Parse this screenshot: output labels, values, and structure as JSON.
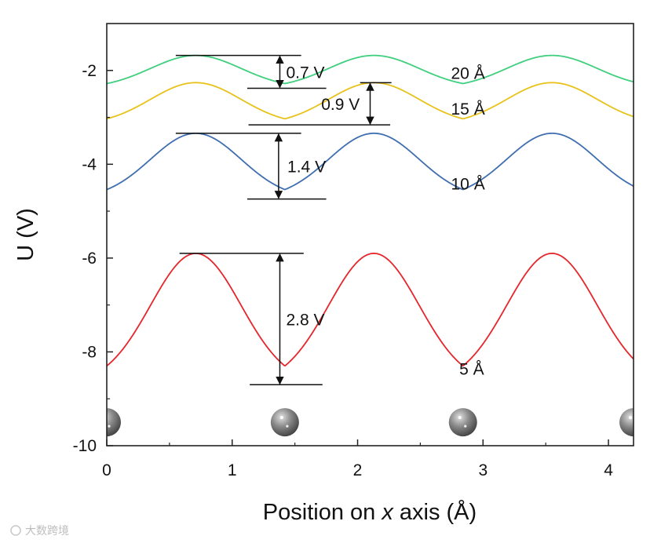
{
  "chart_data": {
    "type": "line",
    "xlabel_prefix": "Position on ",
    "xlabel_var": "x",
    "xlabel_suffix": " axis (Å)",
    "ylabel": "U (V)",
    "xlim": [
      0,
      4.2
    ],
    "ylim": [
      -10,
      -1
    ],
    "xticks": [
      0,
      1,
      2,
      3,
      4
    ],
    "yticks": [
      -2,
      -4,
      -6,
      -8,
      -10
    ],
    "xtick_labels": [
      "0",
      "1",
      "2",
      "3",
      "4"
    ],
    "ytick_labels": [
      "-2",
      "-4",
      "-6",
      "-8",
      "-10"
    ],
    "peak_positions": [
      0.71,
      2.13,
      3.55
    ],
    "period": 1.42,
    "series": [
      {
        "name": "20 Å",
        "color": "#3fcf7e",
        "min": -2.38,
        "max": -1.68
      },
      {
        "name": "15 Å",
        "color": "#e8c21a",
        "min": -3.16,
        "max": -2.26
      },
      {
        "name": "10 Å",
        "color": "#3f6eb0",
        "min": -4.74,
        "max": -3.34
      },
      {
        "name": "5 Å",
        "color": "#e5262b",
        "min": -8.7,
        "max": -5.9
      }
    ],
    "annotations": [
      {
        "label": "0.7 V",
        "x": 1.38,
        "top": -1.68,
        "bottom": -2.38
      },
      {
        "label": "0.9 V",
        "x": 2.1,
        "top": -2.26,
        "bottom": -3.16
      },
      {
        "label": "1.4 V",
        "x": 1.37,
        "top": -3.34,
        "bottom": -4.74
      },
      {
        "label": "2.8 V",
        "x": 1.38,
        "top": -5.9,
        "bottom": -8.7
      }
    ],
    "atoms_x": [
      0.0,
      1.42,
      2.84,
      4.2
    ],
    "atoms_y": -9.5
  },
  "watermark": "大数跨境"
}
